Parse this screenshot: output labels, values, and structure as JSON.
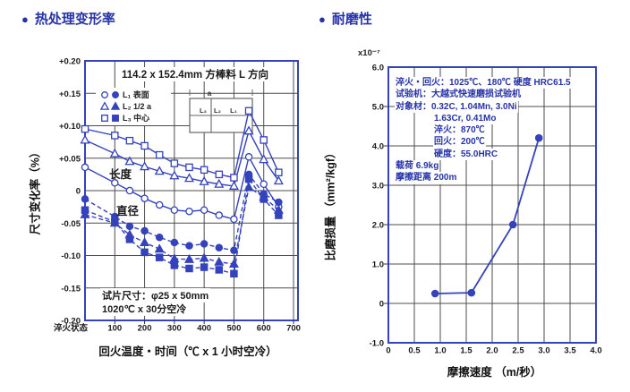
{
  "colors": {
    "accent_blue": "#2633a8",
    "chart_blue": "#3442bc",
    "grid_gray": "#4d4d4d",
    "text_dark": "#1a1a1a"
  },
  "sections": {
    "bullet": "●",
    "left_title": "热处理变形率",
    "right_title": "耐磨性"
  },
  "chart_data": [
    {
      "id": "heat-treatment-deformation",
      "type": "line",
      "title": "热处理变形率",
      "xlabel": "回火温度・时间（℃ x 1 小时空冷）",
      "ylabel": "尺寸变化率（%）",
      "top_annotation": "114.2 x 152.4mm 方棒料 L 方向",
      "note_line1": "试片尺寸：φ25 x 50mm",
      "note_line2": "1020℃ x 30分空冷",
      "curve_label_solid": "长度",
      "curve_label_dashed": "直径",
      "xlim": [
        0,
        715
      ],
      "ylim": [
        -0.2,
        0.2
      ],
      "grid": true,
      "x_ticks": [
        {
          "v": 0,
          "label": "淬火状态",
          "dx": -16
        },
        {
          "v": 100,
          "label": "100",
          "dx": 0
        },
        {
          "v": 200,
          "label": "200",
          "dx": 0
        },
        {
          "v": 300,
          "label": "300",
          "dx": 0
        },
        {
          "v": 400,
          "label": "400",
          "dx": 0
        },
        {
          "v": 500,
          "label": "500",
          "dx": 0
        },
        {
          "v": 600,
          "label": "600",
          "dx": 0
        },
        {
          "v": 700,
          "label": "700",
          "dx": 0
        }
      ],
      "y_ticks": [
        {
          "v": 0.2,
          "label": "+0.20"
        },
        {
          "v": 0.15,
          "label": "+0.15"
        },
        {
          "v": 0.1,
          "label": "+0.10"
        },
        {
          "v": 0.05,
          "label": "+0.05"
        },
        {
          "v": 0,
          "label": "0"
        },
        {
          "v": -0.05,
          "label": "-0.05"
        },
        {
          "v": -0.1,
          "label": "-0.10"
        },
        {
          "v": -0.15,
          "label": "-0.15"
        },
        {
          "v": -0.2,
          "label": "-0.20"
        }
      ],
      "x_grid": [
        100,
        200,
        300,
        400,
        500,
        600,
        700
      ],
      "y_grid": [
        0.15,
        0.1,
        0.05,
        0,
        -0.05,
        -0.1,
        -0.15
      ],
      "legend": [
        {
          "marker": "circle",
          "label": "L₁ 表面"
        },
        {
          "marker": "triangle",
          "label": "L₂ 1/2 a"
        },
        {
          "marker": "square",
          "label": "L₃ 中心"
        }
      ],
      "inset": {
        "dim_label": "a",
        "pos_labels": [
          "L₃",
          "L₂",
          "L₁"
        ]
      },
      "x": [
        0,
        100,
        150,
        200,
        250,
        300,
        350,
        400,
        450,
        500,
        550,
        600,
        650
      ],
      "series": [
        {
          "name": "L1-surface-length",
          "marker": "circle",
          "fill": "open",
          "dashed": false,
          "values": [
            0.036,
            0.012,
            0.0,
            -0.012,
            -0.022,
            -0.03,
            -0.032,
            -0.03,
            -0.038,
            -0.044,
            0.052,
            0.01,
            -0.025
          ]
        },
        {
          "name": "L2-half-length",
          "marker": "triangle",
          "fill": "open",
          "dashed": false,
          "values": [
            0.078,
            0.057,
            0.045,
            0.037,
            0.03,
            0.023,
            0.019,
            0.014,
            0.01,
            0.007,
            0.092,
            0.048,
            0.015
          ]
        },
        {
          "name": "L3-center-length",
          "marker": "square",
          "fill": "open",
          "dashed": false,
          "values": [
            0.095,
            0.085,
            0.077,
            0.069,
            0.055,
            0.042,
            0.036,
            0.032,
            0.025,
            0.02,
            0.123,
            0.078,
            0.028
          ]
        },
        {
          "name": "L1-surface-diameter",
          "marker": "circle",
          "fill": "filled",
          "dashed": true,
          "values": [
            -0.013,
            -0.04,
            -0.055,
            -0.062,
            -0.072,
            -0.08,
            -0.085,
            -0.082,
            -0.088,
            -0.092,
            0.025,
            -0.005,
            -0.018
          ]
        },
        {
          "name": "L2-half-diameter",
          "marker": "triangle",
          "fill": "filled",
          "dashed": true,
          "values": [
            -0.037,
            -0.05,
            -0.068,
            -0.08,
            -0.09,
            -0.105,
            -0.106,
            -0.104,
            -0.11,
            -0.113,
            0.005,
            -0.01,
            -0.03
          ]
        },
        {
          "name": "L3-center-diameter",
          "marker": "square",
          "fill": "filled",
          "dashed": true,
          "values": [
            -0.03,
            -0.048,
            -0.075,
            -0.095,
            -0.103,
            -0.115,
            -0.12,
            -0.118,
            -0.122,
            -0.128,
            0.018,
            -0.013,
            -0.038
          ]
        }
      ]
    },
    {
      "id": "wear-resistance",
      "type": "line",
      "title": "耐磨性",
      "xlabel": "摩擦速度 （m/秒）",
      "ylabel": "比磨损量 （mm²/kgf）",
      "scale_label": "x10⁻⁷",
      "xlim": [
        0,
        4
      ],
      "ylim": [
        -1,
        6
      ],
      "grid": true,
      "x_ticks": [
        {
          "v": 0,
          "label": "0"
        },
        {
          "v": 0.5,
          "label": "0.5"
        },
        {
          "v": 1.0,
          "label": "1.0"
        },
        {
          "v": 1.5,
          "label": "1.5"
        },
        {
          "v": 2.0,
          "label": "2.0"
        },
        {
          "v": 2.5,
          "label": "2.5"
        },
        {
          "v": 3.0,
          "label": "3.0"
        },
        {
          "v": 3.5,
          "label": "3.5"
        },
        {
          "v": 4.0,
          "label": "4.0"
        }
      ],
      "y_ticks": [
        {
          "v": 6,
          "label": "6.0"
        },
        {
          "v": 5,
          "label": "5.0"
        },
        {
          "v": 4,
          "label": "4.0"
        },
        {
          "v": 3,
          "label": "3.0"
        },
        {
          "v": 2,
          "label": "2.0"
        },
        {
          "v": 1,
          "label": "1.0"
        },
        {
          "v": 0,
          "label": "0"
        },
        {
          "v": -1,
          "label": "-1.0"
        }
      ],
      "x_grid": [
        0.5,
        1.0,
        1.5,
        2.0,
        2.5,
        3.0,
        3.5
      ],
      "y_grid": [
        5,
        4,
        3,
        2,
        1,
        0
      ],
      "annotation_lines": [
        {
          "text": "淬火・回火：1025℃、180℃ 硬度 HRC61.5",
          "indent": 0
        },
        {
          "text": "试验机：大越式快速磨损试验机",
          "indent": 0
        },
        {
          "text": "对象材：0.32C, 1.04Mn, 3.0Ni",
          "indent": 0
        },
        {
          "text": "1.63Cr, 0.41Mo",
          "indent": 1
        },
        {
          "text": "淬火：870℃",
          "indent": 1
        },
        {
          "text": "回火：200℃",
          "indent": 1
        },
        {
          "text": "硬度：55.0HRC",
          "indent": 1
        },
        {
          "text": "载荷 6.9kg",
          "indent": 0
        },
        {
          "text": "摩擦距离 200m",
          "indent": 0
        }
      ],
      "points": [
        [
          0.9,
          0.25
        ],
        [
          1.6,
          0.27
        ],
        [
          2.4,
          2.0
        ],
        [
          2.9,
          4.2
        ]
      ]
    }
  ]
}
